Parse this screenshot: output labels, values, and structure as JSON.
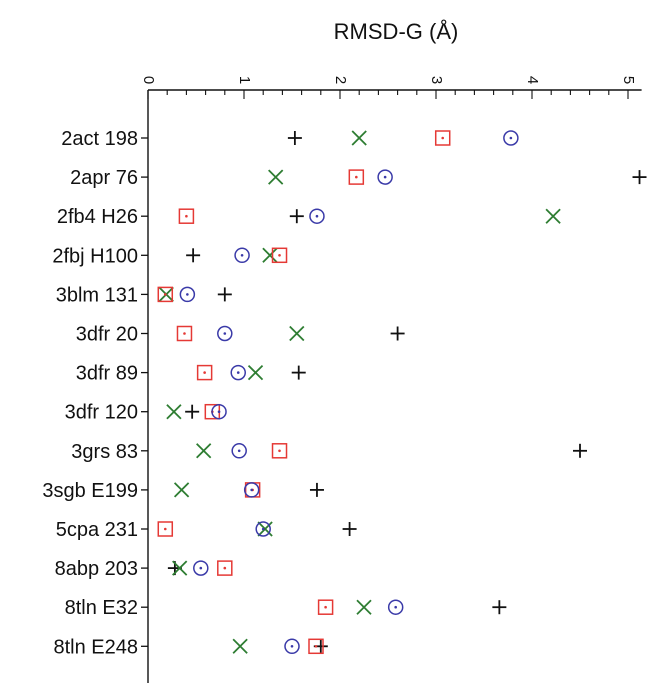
{
  "chart_data": {
    "type": "scatter",
    "title": "RMSD-G (Å)",
    "xlabel": "RMSD-G (Å)",
    "ylabel": "",
    "x_axis_position": "top",
    "x_tick_labels_rotated": true,
    "xlim": [
      0,
      5.1
    ],
    "xticks": [
      "0",
      "1",
      "2",
      "3",
      "4",
      "5"
    ],
    "categories": [
      "2act 198",
      "2apr 76",
      "2fb4 H26",
      "2fbj H100",
      "3blm 131",
      "3dfr 20",
      "3dfr 89",
      "3dfr 120",
      "3grs 83",
      "3sgb E199",
      "5cpa 231",
      "8abp 203",
      "8tln E32",
      "8tln E248"
    ],
    "series": [
      {
        "marker": "plus",
        "color": "#111111",
        "values": [
          1.53,
          5.12,
          1.55,
          0.47,
          0.8,
          2.6,
          1.57,
          0.46,
          4.5,
          1.76,
          2.1,
          0.28,
          3.66,
          1.8
        ]
      },
      {
        "marker": "x",
        "color": "#2e7d32",
        "values": [
          2.2,
          1.33,
          4.22,
          1.27,
          0.19,
          1.55,
          1.12,
          0.27,
          0.58,
          0.35,
          1.22,
          0.33,
          2.25,
          0.96
        ]
      },
      {
        "marker": "square-dot",
        "color": "#e53935",
        "values": [
          3.07,
          2.17,
          0.4,
          1.37,
          0.18,
          0.38,
          0.59,
          0.67,
          1.37,
          1.09,
          0.18,
          0.8,
          1.85,
          1.75
        ]
      },
      {
        "marker": "circle-dot",
        "color": "#3a3aa8",
        "values": [
          3.78,
          2.47,
          1.76,
          0.98,
          0.41,
          0.8,
          0.94,
          0.74,
          0.95,
          1.08,
          1.2,
          0.55,
          2.58,
          1.5
        ]
      }
    ],
    "grid": false,
    "legend": "none"
  }
}
